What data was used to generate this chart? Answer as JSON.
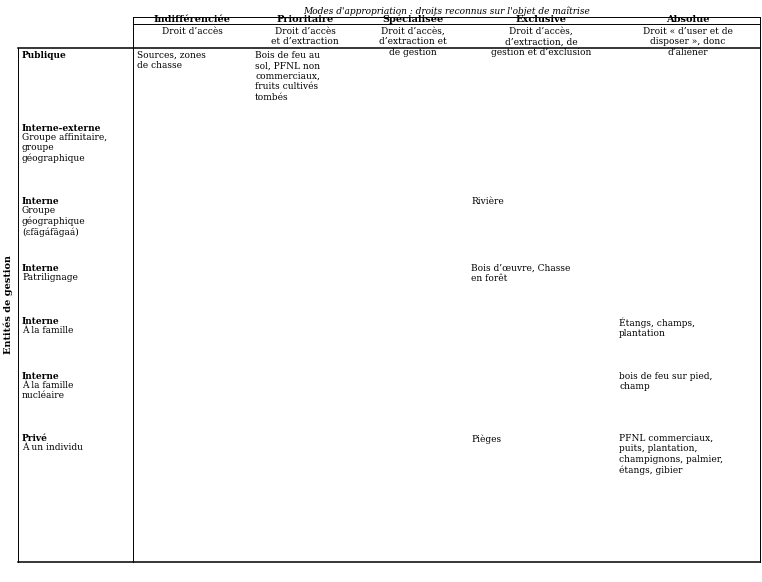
{
  "title_top": "Modes d'appropriation : droits reconnus sur l'objet de maîtrise",
  "col_headers": [
    "Indifférenciée",
    "Prioritaire",
    "Spécialisée",
    "Exclusive",
    "Absolue"
  ],
  "col_subheaders": [
    "Droit d’accès",
    "Droit d’accès\net d’extraction",
    "Droit d’accès,\nd’extraction et\nde gestion",
    "Droit d’accès,\nd’extraction, de\ngestion et d’exclusion",
    "Droit « d’user et de\ndisposer », donc\nd’aliéner"
  ],
  "row_labels_bold": [
    "Publique",
    "Interne-externe",
    "Interne",
    "Interne",
    "Interne",
    "Interne",
    "Privé"
  ],
  "row_labels_normal": [
    "",
    "Groupe affinitaire,\ngroupe\ngéographique",
    "Groupe\ngéographique\n(ɛfägáfägaá)",
    "Patrilignage",
    "À la famille",
    "À la famille\nnucléaire",
    "À un individu"
  ],
  "cells": [
    [
      "Sources, zones\nde chasse",
      "Bois de feu au\nsol, PFNL non\ncommerciaux,\nfruits cultivés\ntombés",
      "",
      "",
      ""
    ],
    [
      "",
      "",
      "",
      "",
      ""
    ],
    [
      "",
      "",
      "",
      "Rivière",
      ""
    ],
    [
      "",
      "",
      "",
      "Bois d’œuvre, Chasse\nen forêt",
      ""
    ],
    [
      "",
      "",
      "",
      "",
      "Étangs, champs,\nplantation"
    ],
    [
      "",
      "",
      "",
      "",
      "bois de feu sur pied,\nchamp"
    ],
    [
      "",
      "",
      "",
      "Pièges",
      "PFNL commerciaux,\npuits, plantation,\nchampignons, palmier,\nétangs, gibier"
    ]
  ],
  "side_label": "Entités de gestion",
  "fig_width": 7.62,
  "fig_height": 5.82,
  "dpi": 100,
  "background": "#ffffff",
  "font_size_header": 7.0,
  "font_size_cell": 6.5,
  "font_size_side": 7.0,
  "font_size_title": 6.5
}
